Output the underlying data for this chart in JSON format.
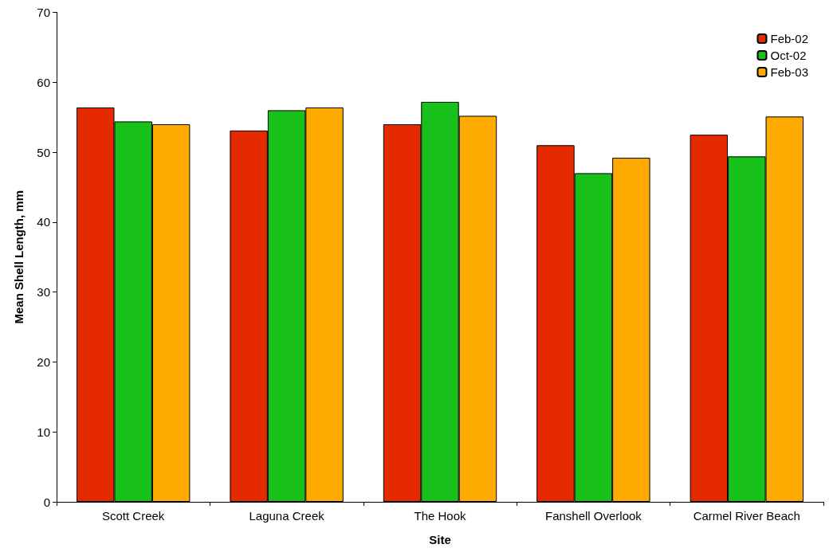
{
  "chart_data": {
    "type": "bar",
    "xlabel": "Site",
    "ylabel": "Mean Shell Length, mm",
    "categories": [
      "Scott Creek",
      "Laguna Creek",
      "The Hook",
      "Fanshell Overlook",
      "Carmel River Beach"
    ],
    "series": [
      {
        "name": "Feb-02",
        "color": "#e52a00",
        "values": [
          56.4,
          53.1,
          54.0,
          51.0,
          52.5
        ]
      },
      {
        "name": "Oct-02",
        "color": "#17c11a",
        "values": [
          54.4,
          56.0,
          57.2,
          47.0,
          49.4
        ]
      },
      {
        "name": "Feb-03",
        "color": "#ffaa00",
        "values": [
          54.0,
          56.4,
          55.2,
          49.2,
          55.1
        ]
      }
    ],
    "ylim": [
      0,
      70
    ],
    "yticks": [
      0,
      10,
      20,
      30,
      40,
      50,
      60,
      70
    ],
    "grid": false,
    "legend": "top right"
  }
}
